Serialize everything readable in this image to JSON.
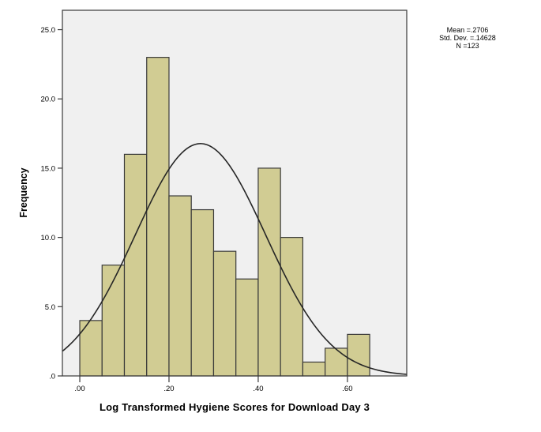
{
  "figure": {
    "xlabel": "Log Transformed Hygiene Scores for Download Day 3",
    "ylabel": "Frequency",
    "stats_box": {
      "mean": "Mean =.2706",
      "std_dev": "Std. Dev. =.14628",
      "n": "N =123"
    }
  },
  "chart_data": {
    "type": "bar",
    "subtype": "histogram",
    "title": "",
    "xlabel": "Log Transformed Hygiene Scores for Download Day 3",
    "ylabel": "Frequency",
    "bin_start": 0.0,
    "bin_width": 0.05,
    "bin_edges": [
      0.0,
      0.05,
      0.1,
      0.15,
      0.2,
      0.25,
      0.3,
      0.35,
      0.4,
      0.45,
      0.5,
      0.55,
      0.6,
      0.65
    ],
    "frequencies": [
      4,
      8,
      16,
      23,
      13,
      12,
      9,
      7,
      15,
      10,
      1,
      2,
      3
    ],
    "x_ticks": [
      {
        "value": 0.0,
        "label": ".00"
      },
      {
        "value": 0.2,
        "label": ".20"
      },
      {
        "value": 0.4,
        "label": ".40"
      },
      {
        "value": 0.6,
        "label": ".60"
      }
    ],
    "y_ticks": [
      {
        "value": 0,
        "label": ".0"
      },
      {
        "value": 5,
        "label": "5.0"
      },
      {
        "value": 10,
        "label": "10.0"
      },
      {
        "value": 15,
        "label": "15.0"
      },
      {
        "value": 20,
        "label": "20.0"
      },
      {
        "value": 25,
        "label": "25.0"
      }
    ],
    "xlim": [
      -0.039,
      0.733
    ],
    "ylim": [
      0,
      26.4
    ],
    "grid": false,
    "normal_curve": {
      "mean": 0.2706,
      "std_dev": 0.14628,
      "n": 123
    },
    "stats_annotation": [
      "Mean =.2706",
      "Std. Dev. =.14628",
      "N =123"
    ],
    "colors": {
      "bar_fill": "#d1cc93",
      "bar_stroke": "#3a3a3a",
      "curve": "#262626",
      "plot_background": "#f0f0f0",
      "plot_border": "#3a3a3a",
      "text": "#000000"
    }
  }
}
